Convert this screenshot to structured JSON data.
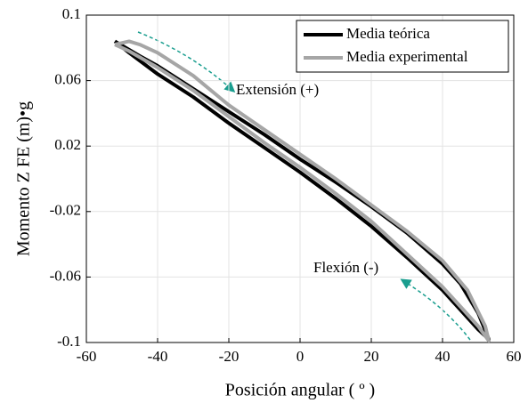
{
  "chart_data": {
    "type": "line",
    "x_label": "Posición angular ( º )",
    "y_label": "Momento Z FE (m)•g",
    "xlim": [
      -60,
      60
    ],
    "xticks": [
      -60,
      -40,
      -20,
      0,
      20,
      40,
      60
    ],
    "ylim": [
      -0.1,
      0.1
    ],
    "yticks": [
      -0.1,
      -0.06,
      -0.02,
      0.02,
      0.06,
      0.1
    ],
    "grid": true,
    "legend": "upper right",
    "annotations": [
      "Extensión (+)",
      "Flexión (-)"
    ],
    "series": [
      {
        "name": "Media teórica",
        "color": "#000000",
        "x": [
          -52,
          -45,
          -40,
          -30,
          -20,
          -10,
          0,
          10,
          20,
          30,
          40,
          45,
          50,
          53,
          50,
          45,
          40,
          30,
          20,
          10,
          0,
          -10,
          -20,
          -30,
          -40,
          -48,
          -52
        ],
        "values": [
          0.084,
          0.075,
          0.069,
          0.055,
          0.041,
          0.027,
          0.012,
          -0.002,
          -0.017,
          -0.033,
          -0.052,
          -0.064,
          -0.082,
          -0.098,
          -0.092,
          -0.08,
          -0.068,
          -0.048,
          -0.029,
          -0.012,
          0.004,
          0.019,
          0.034,
          0.05,
          0.064,
          0.077,
          0.084
        ]
      },
      {
        "name": "Media experimental",
        "color": "#a6a6a6",
        "x": [
          -52,
          -48,
          -45,
          -40,
          -30,
          -20,
          -10,
          0,
          10,
          20,
          30,
          40,
          47,
          52,
          53,
          50,
          45,
          40,
          30,
          20,
          10,
          0,
          -10,
          -20,
          -30,
          -40,
          -48,
          -52
        ],
        "values": [
          0.082,
          0.084,
          0.082,
          0.077,
          0.063,
          0.045,
          0.03,
          0.015,
          0.0,
          -0.016,
          -0.032,
          -0.05,
          -0.068,
          -0.09,
          -0.099,
          -0.09,
          -0.078,
          -0.066,
          -0.046,
          -0.026,
          -0.009,
          0.007,
          0.022,
          0.038,
          0.054,
          0.068,
          0.078,
          0.082
        ]
      }
    ]
  }
}
